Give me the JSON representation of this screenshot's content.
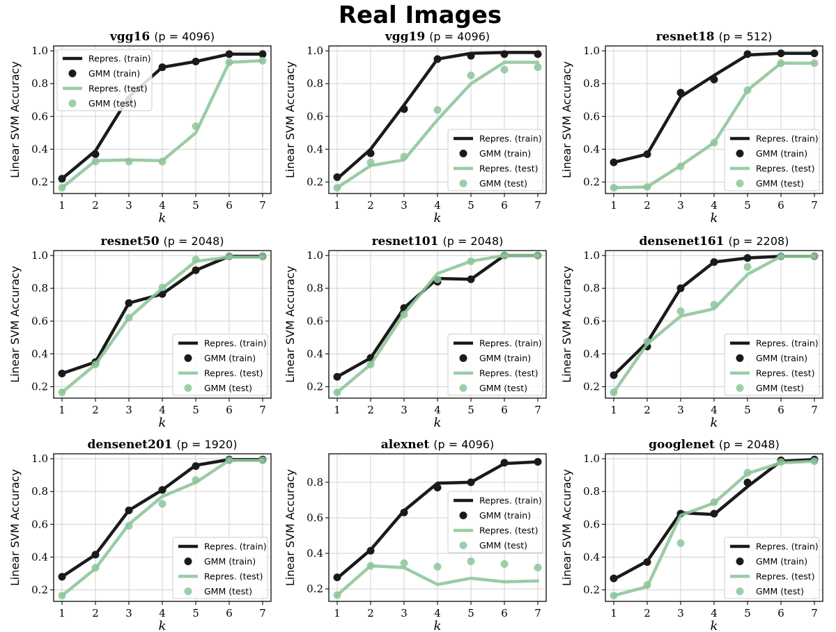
{
  "figure_title": "Real Images",
  "chart_data": [
    {
      "type": "line",
      "model": "vgg16",
      "p_text": "(p = 4096)",
      "xlabel": "k",
      "ylabel": "Linear SVM Accuracy",
      "x": [
        1,
        2,
        3,
        4,
        5,
        6,
        7
      ],
      "xlim": [
        0.75,
        7.25
      ],
      "ylim": [
        0.13,
        1.03
      ],
      "yticks": [
        0.2,
        0.4,
        0.6,
        0.8,
        1.0
      ],
      "legend_position": "upper-left",
      "series": [
        {
          "name": "Repres. (train)",
          "kind": "line",
          "color": "#1a1a1a",
          "values": [
            0.22,
            0.39,
            0.72,
            0.9,
            0.935,
            0.98,
            0.98
          ]
        },
        {
          "name": "GMM (train)",
          "kind": "points",
          "color": "#1a1a1a",
          "values": [
            0.22,
            0.37,
            0.7,
            0.9,
            0.935,
            0.98,
            0.98
          ]
        },
        {
          "name": "Repres. (test)",
          "kind": "line",
          "color": "#8cc59a",
          "values": [
            0.165,
            0.33,
            0.335,
            0.33,
            0.5,
            0.93,
            0.94
          ]
        },
        {
          "name": "GMM (test)",
          "kind": "points",
          "color": "#8cc59a",
          "values": [
            0.165,
            0.325,
            0.325,
            0.325,
            0.54,
            0.93,
            0.94
          ]
        }
      ]
    },
    {
      "type": "line",
      "model": "vgg19",
      "p_text": "(p = 4096)",
      "xlabel": "k",
      "ylabel": "Linear SVM Accuracy",
      "x": [
        1,
        2,
        3,
        4,
        5,
        6,
        7
      ],
      "xlim": [
        0.75,
        7.25
      ],
      "ylim": [
        0.13,
        1.03
      ],
      "yticks": [
        0.2,
        0.4,
        0.6,
        0.8,
        1.0
      ],
      "legend_position": "lower-right",
      "series": [
        {
          "name": "Repres. (train)",
          "kind": "line",
          "color": "#1a1a1a",
          "values": [
            0.22,
            0.4,
            0.67,
            0.95,
            0.985,
            0.99,
            0.99
          ]
        },
        {
          "name": "GMM (train)",
          "kind": "points",
          "color": "#1a1a1a",
          "values": [
            0.23,
            0.375,
            0.645,
            0.95,
            0.97,
            0.98,
            0.98
          ]
        },
        {
          "name": "Repres. (test)",
          "kind": "line",
          "color": "#8cc59a",
          "values": [
            0.165,
            0.3,
            0.335,
            0.58,
            0.8,
            0.93,
            0.93
          ]
        },
        {
          "name": "GMM (test)",
          "kind": "points",
          "color": "#8cc59a",
          "values": [
            0.165,
            0.32,
            0.355,
            0.64,
            0.85,
            0.885,
            0.9
          ]
        }
      ]
    },
    {
      "type": "line",
      "model": "resnet18",
      "p_text": "(p = 512)",
      "xlabel": "k",
      "ylabel": "Linear SVM Accuracy",
      "x": [
        1,
        2,
        3,
        4,
        5,
        6,
        7
      ],
      "xlim": [
        0.75,
        7.25
      ],
      "ylim": [
        0.13,
        1.03
      ],
      "yticks": [
        0.2,
        0.4,
        0.6,
        0.8,
        1.0
      ],
      "legend_position": "lower-right",
      "series": [
        {
          "name": "Repres. (train)",
          "kind": "line",
          "color": "#1a1a1a",
          "values": [
            0.32,
            0.37,
            0.72,
            0.85,
            0.975,
            0.985,
            0.985
          ]
        },
        {
          "name": "GMM (train)",
          "kind": "points",
          "color": "#1a1a1a",
          "values": [
            0.32,
            0.37,
            0.745,
            0.825,
            0.98,
            0.985,
            0.985
          ]
        },
        {
          "name": "Repres. (test)",
          "kind": "line",
          "color": "#8cc59a",
          "values": [
            0.165,
            0.17,
            0.3,
            0.44,
            0.76,
            0.925,
            0.925
          ]
        },
        {
          "name": "GMM (test)",
          "kind": "points",
          "color": "#8cc59a",
          "values": [
            0.165,
            0.17,
            0.295,
            0.44,
            0.76,
            0.925,
            0.925
          ]
        }
      ]
    },
    {
      "type": "line",
      "model": "resnet50",
      "p_text": "(p = 2048)",
      "xlabel": "k",
      "ylabel": "Linear SVM Accuracy",
      "x": [
        1,
        2,
        3,
        4,
        5,
        6,
        7
      ],
      "xlim": [
        0.75,
        7.25
      ],
      "ylim": [
        0.13,
        1.03
      ],
      "yticks": [
        0.2,
        0.4,
        0.6,
        0.8,
        1.0
      ],
      "legend_position": "lower-right",
      "series": [
        {
          "name": "Repres. (train)",
          "kind": "line",
          "color": "#1a1a1a",
          "values": [
            0.28,
            0.35,
            0.71,
            0.765,
            0.91,
            0.995,
            0.995
          ]
        },
        {
          "name": "GMM (train)",
          "kind": "points",
          "color": "#1a1a1a",
          "values": [
            0.28,
            0.35,
            0.71,
            0.765,
            0.91,
            0.995,
            0.995
          ]
        },
        {
          "name": "Repres. (test)",
          "kind": "line",
          "color": "#8cc59a",
          "values": [
            0.165,
            0.335,
            0.62,
            0.8,
            0.965,
            0.99,
            0.99
          ]
        },
        {
          "name": "GMM (test)",
          "kind": "points",
          "color": "#8cc59a",
          "values": [
            0.165,
            0.335,
            0.62,
            0.805,
            0.975,
            0.995,
            0.995
          ]
        }
      ]
    },
    {
      "type": "line",
      "model": "resnet101",
      "p_text": "(p = 2048)",
      "xlabel": "k",
      "ylabel": "Linear SVM Accuracy",
      "x": [
        1,
        2,
        3,
        4,
        5,
        6,
        7
      ],
      "xlim": [
        0.75,
        7.25
      ],
      "ylim": [
        0.13,
        1.03
      ],
      "yticks": [
        0.2,
        0.4,
        0.6,
        0.8,
        1.0
      ],
      "legend_position": "lower-right",
      "series": [
        {
          "name": "Repres. (train)",
          "kind": "line",
          "color": "#1a1a1a",
          "values": [
            0.26,
            0.375,
            0.68,
            0.86,
            0.855,
            1.0,
            1.0
          ]
        },
        {
          "name": "GMM (train)",
          "kind": "points",
          "color": "#1a1a1a",
          "values": [
            0.26,
            0.375,
            0.68,
            0.84,
            0.855,
            1.0,
            1.0
          ]
        },
        {
          "name": "Repres. (test)",
          "kind": "line",
          "color": "#8cc59a",
          "values": [
            0.165,
            0.335,
            0.645,
            0.89,
            0.965,
            1.0,
            1.0
          ]
        },
        {
          "name": "GMM (test)",
          "kind": "points",
          "color": "#8cc59a",
          "values": [
            0.165,
            0.335,
            0.64,
            0.855,
            0.965,
            1.0,
            1.0
          ]
        }
      ]
    },
    {
      "type": "line",
      "model": "densenet161",
      "p_text": "(p = 2208)",
      "xlabel": "k",
      "ylabel": "Linear SVM Accuracy",
      "x": [
        1,
        2,
        3,
        4,
        5,
        6,
        7
      ],
      "xlim": [
        0.75,
        7.25
      ],
      "ylim": [
        0.13,
        1.03
      ],
      "yticks": [
        0.2,
        0.4,
        0.6,
        0.8,
        1.0
      ],
      "legend_position": "lower-right",
      "series": [
        {
          "name": "Repres. (train)",
          "kind": "line",
          "color": "#1a1a1a",
          "values": [
            0.27,
            0.47,
            0.8,
            0.96,
            0.985,
            0.995,
            0.995
          ]
        },
        {
          "name": "GMM (train)",
          "kind": "points",
          "color": "#1a1a1a",
          "values": [
            0.27,
            0.445,
            0.8,
            0.96,
            0.985,
            0.995,
            0.995
          ]
        },
        {
          "name": "Repres. (test)",
          "kind": "line",
          "color": "#8cc59a",
          "values": [
            0.165,
            0.46,
            0.63,
            0.675,
            0.885,
            0.995,
            0.995
          ]
        },
        {
          "name": "GMM (test)",
          "kind": "points",
          "color": "#8cc59a",
          "values": [
            0.165,
            0.475,
            0.66,
            0.7,
            0.93,
            0.995,
            0.995
          ]
        }
      ]
    },
    {
      "type": "line",
      "model": "densenet201",
      "p_text": "(p = 1920)",
      "xlabel": "k",
      "ylabel": "Linear SVM Accuracy",
      "x": [
        1,
        2,
        3,
        4,
        5,
        6,
        7
      ],
      "xlim": [
        0.75,
        7.25
      ],
      "ylim": [
        0.13,
        1.03
      ],
      "yticks": [
        0.2,
        0.4,
        0.6,
        0.8,
        1.0
      ],
      "legend_position": "lower-right",
      "series": [
        {
          "name": "Repres. (train)",
          "kind": "line",
          "color": "#1a1a1a",
          "values": [
            0.28,
            0.415,
            0.685,
            0.81,
            0.96,
            0.995,
            0.995
          ]
        },
        {
          "name": "GMM (train)",
          "kind": "points",
          "color": "#1a1a1a",
          "values": [
            0.28,
            0.415,
            0.685,
            0.81,
            0.955,
            0.995,
            0.995
          ]
        },
        {
          "name": "Repres. (test)",
          "kind": "line",
          "color": "#8cc59a",
          "values": [
            0.165,
            0.33,
            0.6,
            0.77,
            0.855,
            0.99,
            0.99
          ]
        },
        {
          "name": "GMM (test)",
          "kind": "points",
          "color": "#8cc59a",
          "values": [
            0.165,
            0.335,
            0.59,
            0.725,
            0.87,
            0.99,
            0.99
          ]
        }
      ]
    },
    {
      "type": "line",
      "model": "alexnet",
      "p_text": "(p = 4096)",
      "xlabel": "k",
      "ylabel": "Linear SVM Accuracy",
      "x": [
        1,
        2,
        3,
        4,
        5,
        6,
        7
      ],
      "xlim": [
        0.75,
        7.25
      ],
      "ylim": [
        0.13,
        0.96
      ],
      "yticks": [
        0.2,
        0.4,
        0.6,
        0.8
      ],
      "legend_position": "center-right",
      "series": [
        {
          "name": "Repres. (train)",
          "kind": "line",
          "color": "#1a1a1a",
          "values": [
            0.26,
            0.42,
            0.64,
            0.795,
            0.8,
            0.905,
            0.915
          ]
        },
        {
          "name": "GMM (train)",
          "kind": "points",
          "color": "#1a1a1a",
          "values": [
            0.265,
            0.415,
            0.63,
            0.77,
            0.8,
            0.91,
            0.915
          ]
        },
        {
          "name": "Repres. (test)",
          "kind": "line",
          "color": "#8cc59a",
          "values": [
            0.165,
            0.33,
            0.32,
            0.225,
            0.26,
            0.24,
            0.245
          ]
        },
        {
          "name": "GMM (test)",
          "kind": "points",
          "color": "#8cc59a",
          "values": [
            0.165,
            0.33,
            0.345,
            0.325,
            0.355,
            0.34,
            0.32
          ]
        }
      ]
    },
    {
      "type": "line",
      "model": "googlenet",
      "p_text": "(p = 2048)",
      "xlabel": "k",
      "ylabel": "Linear SVM Accuracy",
      "x": [
        1,
        2,
        3,
        4,
        5,
        6,
        7
      ],
      "xlim": [
        0.75,
        7.25
      ],
      "ylim": [
        0.13,
        1.03
      ],
      "yticks": [
        0.2,
        0.4,
        0.6,
        0.8,
        1.0
      ],
      "legend_position": "lower-right",
      "series": [
        {
          "name": "Repres. (train)",
          "kind": "line",
          "color": "#1a1a1a",
          "values": [
            0.265,
            0.375,
            0.67,
            0.66,
            0.83,
            0.985,
            0.995
          ]
        },
        {
          "name": "GMM (train)",
          "kind": "points",
          "color": "#1a1a1a",
          "values": [
            0.27,
            0.37,
            0.665,
            0.665,
            0.855,
            0.99,
            0.995
          ]
        },
        {
          "name": "Repres. (test)",
          "kind": "line",
          "color": "#8cc59a",
          "values": [
            0.165,
            0.22,
            0.655,
            0.73,
            0.91,
            0.975,
            0.985
          ]
        },
        {
          "name": "GMM (test)",
          "kind": "points",
          "color": "#8cc59a",
          "values": [
            0.165,
            0.23,
            0.485,
            0.735,
            0.915,
            0.98,
            0.985
          ]
        }
      ]
    }
  ]
}
